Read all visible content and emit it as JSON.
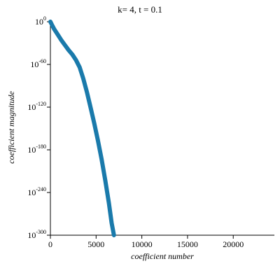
{
  "chart_data": {
    "type": "scatter",
    "title": "k= 4, t = 0.1",
    "xlabel": "coefficient number",
    "ylabel": "coefficient magnitude",
    "yscale": "log10",
    "xlim": [
      0,
      24500
    ],
    "ylim_log10": [
      -300,
      3
    ],
    "x_ticks": [
      {
        "value": 0,
        "label": "0"
      },
      {
        "value": 5000,
        "label": "5000"
      },
      {
        "value": 10000,
        "label": "10000"
      },
      {
        "value": 15000,
        "label": "15000"
      },
      {
        "value": 20000,
        "label": "20000"
      }
    ],
    "y_ticks": [
      {
        "log10": 0,
        "base": "10",
        "exp": "0"
      },
      {
        "log10": -60,
        "base": "10",
        "exp": "-60"
      },
      {
        "log10": -120,
        "base": "10",
        "exp": "-120"
      },
      {
        "log10": -180,
        "base": "10",
        "exp": "-180"
      },
      {
        "log10": -240,
        "base": "10",
        "exp": "-240"
      },
      {
        "log10": -300,
        "base": "10",
        "exp": "-300"
      }
    ],
    "grid": false,
    "series": [
      {
        "color": "#1a7aab",
        "points": [
          {
            "x": 0,
            "log10y": 0
          },
          {
            "x": 150,
            "log10y": -4
          },
          {
            "x": 400,
            "log10y": -10
          },
          {
            "x": 800,
            "log10y": -18
          },
          {
            "x": 1200,
            "log10y": -26
          },
          {
            "x": 1600,
            "log10y": -33
          },
          {
            "x": 2000,
            "log10y": -40
          },
          {
            "x": 2400,
            "log10y": -46
          },
          {
            "x": 2800,
            "log10y": -54
          },
          {
            "x": 3200,
            "log10y": -64
          },
          {
            "x": 3600,
            "log10y": -80
          },
          {
            "x": 4000,
            "log10y": -99
          },
          {
            "x": 4400,
            "log10y": -121
          },
          {
            "x": 4800,
            "log10y": -143
          },
          {
            "x": 5200,
            "log10y": -167
          },
          {
            "x": 5600,
            "log10y": -193
          },
          {
            "x": 6000,
            "log10y": -223
          },
          {
            "x": 6400,
            "log10y": -255
          },
          {
            "x": 6700,
            "log10y": -283
          },
          {
            "x": 6950,
            "log10y": -300
          }
        ]
      }
    ]
  }
}
